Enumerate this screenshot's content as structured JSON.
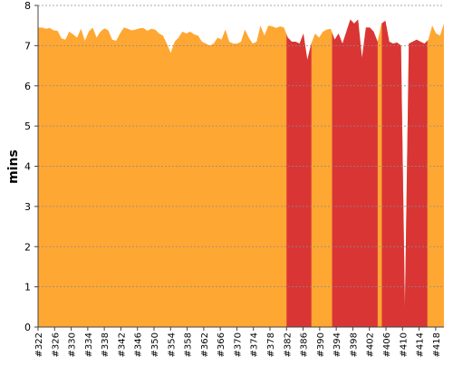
{
  "chart_data": {
    "type": "area",
    "ylabel": "mins",
    "xlabel": "",
    "ylim": [
      0,
      8
    ],
    "y_ticks": [
      "0",
      "1",
      "2",
      "3",
      "4",
      "5",
      "6",
      "7",
      "8"
    ],
    "grid": true,
    "x_tick_labels": [
      "#322",
      "#326",
      "#330",
      "#334",
      "#338",
      "#342",
      "#346",
      "#350",
      "#354",
      "#358",
      "#362",
      "#366",
      "#370",
      "#374",
      "#378",
      "#382",
      "#386",
      "#390",
      "#394",
      "#398",
      "#402",
      "#406",
      "#410",
      "#414",
      "#418"
    ],
    "x_start": 322,
    "x_end": 420,
    "values": [
      7.45,
      7.45,
      7.42,
      7.44,
      7.38,
      7.37,
      7.18,
      7.15,
      7.35,
      7.28,
      7.2,
      7.42,
      7.12,
      7.35,
      7.45,
      7.2,
      7.35,
      7.43,
      7.38,
      7.15,
      7.12,
      7.3,
      7.45,
      7.42,
      7.38,
      7.4,
      7.43,
      7.44,
      7.37,
      7.42,
      7.4,
      7.3,
      7.25,
      7.05,
      6.82,
      7.1,
      7.2,
      7.35,
      7.3,
      7.35,
      7.28,
      7.25,
      7.1,
      7.05,
      7.0,
      7.05,
      7.2,
      7.15,
      7.4,
      7.1,
      7.05,
      7.05,
      7.1,
      7.4,
      7.2,
      7.05,
      7.1,
      7.5,
      7.25,
      7.5,
      7.48,
      7.44,
      7.48,
      7.45,
      7.2,
      7.1,
      7.1,
      7.05,
      7.3,
      6.65,
      7.05,
      7.3,
      7.2,
      7.35,
      7.4,
      7.42,
      7.15,
      7.3,
      7.05,
      7.35,
      7.65,
      7.55,
      7.65,
      6.7,
      7.45,
      7.45,
      7.35,
      7.1,
      7.55,
      7.62,
      7.1,
      7.05,
      7.08,
      7.0,
      0.5,
      7.05,
      7.1,
      7.15,
      7.1,
      7.05,
      7.15,
      7.5,
      7.3,
      7.25,
      7.55
    ],
    "failed_ranges": [
      [
        382,
        388
      ],
      [
        393,
        404
      ],
      [
        405,
        416
      ]
    ],
    "colors": {
      "success": "#FFA733",
      "failure": "#D93535",
      "grid": "#8a8a8a",
      "axis": "#444444"
    }
  }
}
